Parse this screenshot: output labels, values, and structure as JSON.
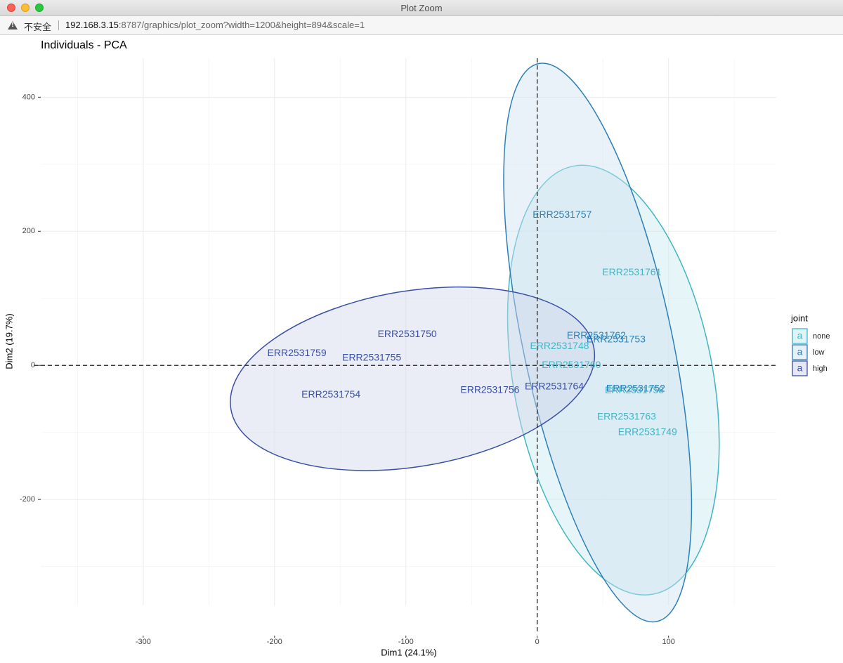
{
  "window": {
    "title": "Plot Zoom"
  },
  "address": {
    "insecure_label": "不安全",
    "host": "192.168.3.15",
    "path": ":8787/graphics/plot_zoom?width=1200&height=894&scale=1"
  },
  "chart_data": {
    "type": "scatter",
    "title": "Individuals - PCA",
    "xlabel": "Dim1 (24.1%)",
    "ylabel": "Dim2 (19.7%)",
    "xlim": [
      -378,
      182
    ],
    "ylim": [
      -358,
      458
    ],
    "xticks": [
      -300,
      -200,
      -100,
      0,
      100
    ],
    "yticks": [
      -200,
      0,
      200,
      400
    ],
    "xtick_labels": [
      "-300",
      "-200",
      "-100",
      "0",
      "100"
    ],
    "ytick_labels": [
      "-200",
      "0",
      "200",
      "400"
    ],
    "grid": true,
    "reference_lines": {
      "x": 0,
      "y": 0
    },
    "legend": {
      "title": "joint",
      "position": "right",
      "glyph": "a",
      "entries": [
        {
          "name": "none",
          "color": "#41b6c4"
        },
        {
          "name": "low",
          "color": "#2c7fb8"
        },
        {
          "name": "high",
          "color": "#3a4fa8"
        }
      ]
    },
    "series": [
      {
        "name": "none",
        "color": "#41b6c4",
        "fill": "#c7e9f0",
        "ellipse": {
          "cx": 58,
          "cy": -22,
          "rx": 142,
          "ry": 310,
          "angle": -10.5
        },
        "points": [
          {
            "label": "ERR2531761",
            "x": 72,
            "y": 138
          },
          {
            "label": "ERR2531748",
            "x": 17,
            "y": 28
          },
          {
            "label": "ERR2531760",
            "x": 26,
            "y": 0
          },
          {
            "label": "ERR2531758",
            "x": 74,
            "y": -38
          },
          {
            "label": "ERR2531763",
            "x": 68,
            "y": -77
          },
          {
            "label": "ERR2531749",
            "x": 84,
            "y": -100
          }
        ]
      },
      {
        "name": "low",
        "color": "#2c7fb8",
        "fill": "#cfe3f1",
        "ellipse": {
          "cx": 46,
          "cy": 34,
          "rx": 106,
          "ry": 406,
          "angle": -12
        },
        "points": [
          {
            "label": "ERR2531757",
            "x": 19,
            "y": 224
          },
          {
            "label": "ERR2531762",
            "x": 45,
            "y": 44
          },
          {
            "label": "ERR2531753",
            "x": 60,
            "y": 38
          },
          {
            "label": "ERR2531752",
            "x": 75,
            "y": -35
          }
        ]
      },
      {
        "name": "high",
        "color": "#3a4fa8",
        "fill": "#d2d7ea",
        "ellipse": {
          "cx": -95,
          "cy": -20,
          "rx": 262,
          "ry": 125,
          "angle": -9.5
        },
        "points": [
          {
            "label": "ERR2531750",
            "x": -99,
            "y": 46
          },
          {
            "label": "ERR2531759",
            "x": -183,
            "y": 18
          },
          {
            "label": "ERR2531755",
            "x": -126,
            "y": 11
          },
          {
            "label": "ERR2531754",
            "x": -157,
            "y": -44
          },
          {
            "label": "ERR2531756",
            "x": -36,
            "y": -37
          },
          {
            "label": "ERR2531764",
            "x": 13,
            "y": -32
          }
        ]
      }
    ]
  }
}
